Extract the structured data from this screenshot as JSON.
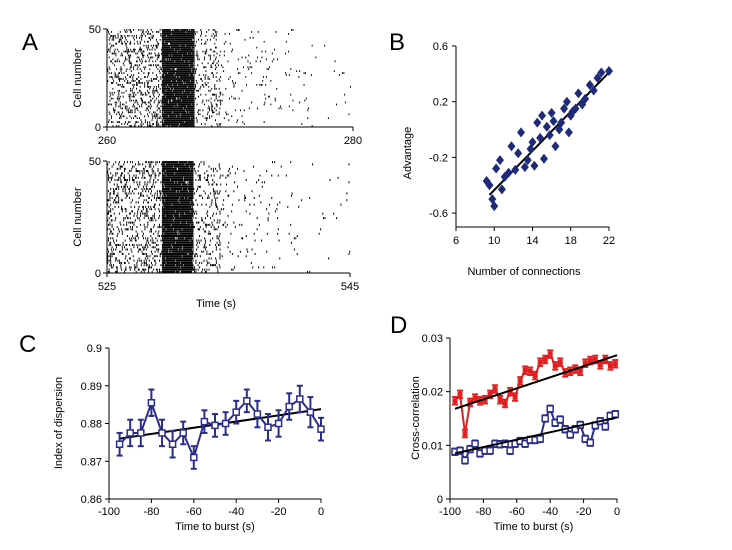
{
  "panel_labels": [
    "A",
    "B",
    "C",
    "D"
  ],
  "chart_data": [
    {
      "panel": "A",
      "type": "scatter",
      "subtype": "raster",
      "rasters": [
        {
          "xlim": [
            260,
            280
          ],
          "ylim": [
            0,
            50
          ],
          "x_ticks": [
            260,
            280
          ],
          "y_ticks": [
            0,
            50
          ],
          "ylabel": "Cell number",
          "burst_center": 265.8
        },
        {
          "xlim": [
            525,
            545
          ],
          "ylim": [
            0,
            50
          ],
          "x_ticks": [
            525,
            545
          ],
          "y_ticks": [
            0,
            50
          ],
          "ylabel": "Cell number",
          "burst_center": 530.8
        }
      ],
      "xlabel": "Time (s)"
    },
    {
      "panel": "B",
      "type": "scatter",
      "xlabel": "Number of connections",
      "ylabel": "Advantage",
      "xlim": [
        6,
        22
      ],
      "ylim": [
        -0.7,
        0.6
      ],
      "x_ticks": [
        6,
        10,
        14,
        18,
        22
      ],
      "y_ticks": [
        -0.6,
        -0.2,
        0.2,
        0.6
      ],
      "points": [
        [
          9.2,
          -0.37
        ],
        [
          9.5,
          -0.4
        ],
        [
          9.8,
          -0.5
        ],
        [
          10.0,
          -0.55
        ],
        [
          10.2,
          -0.28
        ],
        [
          10.6,
          -0.22
        ],
        [
          10.8,
          -0.43
        ],
        [
          11.1,
          -0.34
        ],
        [
          11.5,
          -0.31
        ],
        [
          11.8,
          -0.12
        ],
        [
          12.2,
          -0.29
        ],
        [
          12.5,
          -0.17
        ],
        [
          12.8,
          -0.02
        ],
        [
          13.2,
          -0.27
        ],
        [
          13.5,
          -0.22
        ],
        [
          13.8,
          -0.14
        ],
        [
          14.0,
          -0.09
        ],
        [
          14.2,
          -0.26
        ],
        [
          14.5,
          0.05
        ],
        [
          14.8,
          -0.06
        ],
        [
          15.0,
          0.1
        ],
        [
          15.2,
          -0.21
        ],
        [
          15.5,
          0.02
        ],
        [
          15.8,
          -0.04
        ],
        [
          16.0,
          0.12
        ],
        [
          16.2,
          0.06
        ],
        [
          16.4,
          -0.12
        ],
        [
          16.8,
          0.0
        ],
        [
          17.0,
          0.05
        ],
        [
          17.3,
          0.15
        ],
        [
          17.6,
          0.2
        ],
        [
          17.8,
          -0.02
        ],
        [
          18.0,
          0.1
        ],
        [
          18.2,
          0.13
        ],
        [
          18.5,
          0.15
        ],
        [
          18.8,
          0.26
        ],
        [
          19.2,
          0.18
        ],
        [
          19.5,
          0.22
        ],
        [
          20.0,
          0.32
        ],
        [
          20.4,
          0.28
        ],
        [
          20.8,
          0.37
        ],
        [
          21.2,
          0.41
        ],
        [
          22.0,
          0.42
        ]
      ],
      "fit": {
        "x": [
          9.5,
          22
        ],
        "y": [
          -0.47,
          0.41
        ]
      },
      "marker_color": "#1f2b7a"
    },
    {
      "panel": "C",
      "type": "line",
      "xlabel": "Time to burst (s)",
      "ylabel": "Index of dispersion",
      "xlim": [
        -100,
        0
      ],
      "ylim": [
        0.86,
        0.9
      ],
      "x_ticks": [
        -100,
        -80,
        -60,
        -40,
        -20,
        0
      ],
      "y_ticks": [
        0.86,
        0.87,
        0.88,
        0.89,
        0.9
      ],
      "series": [
        {
          "color": "#2b2d8c",
          "x": [
            -95,
            -90,
            -85,
            -80,
            -75,
            -70,
            -65,
            -60,
            -55,
            -50,
            -45,
            -40,
            -35,
            -30,
            -25,
            -20,
            -15,
            -10,
            -5,
            0
          ],
          "values": [
            0.8745,
            0.8775,
            0.8775,
            0.8855,
            0.8775,
            0.8745,
            0.8775,
            0.871,
            0.8805,
            0.8795,
            0.88,
            0.883,
            0.886,
            0.8825,
            0.879,
            0.88,
            0.8845,
            0.8865,
            0.883,
            0.8785
          ],
          "errors": [
            0.003,
            0.0035,
            0.0035,
            0.0035,
            0.0035,
            0.0035,
            0.003,
            0.003,
            0.003,
            0.003,
            0.003,
            0.003,
            0.003,
            0.0035,
            0.0035,
            0.0035,
            0.0035,
            0.0035,
            0.004,
            0.003
          ]
        }
      ],
      "fit": {
        "x": [
          -95,
          0
        ],
        "y": [
          0.876,
          0.8838
        ]
      }
    },
    {
      "panel": "D",
      "type": "line",
      "xlabel": "Time to burst (s)",
      "ylabel": "Cross-correlation",
      "xlim": [
        -100,
        0
      ],
      "ylim": [
        0,
        0.03
      ],
      "x_ticks": [
        -100,
        -80,
        -60,
        -40,
        -20,
        0
      ],
      "y_ticks": [
        0,
        0.01,
        0.02,
        0.03
      ],
      "series": [
        {
          "color": "#e02020",
          "x": [
            -97,
            -94,
            -91,
            -88,
            -85,
            -82,
            -79,
            -76,
            -73,
            -70,
            -67,
            -64,
            -61,
            -58,
            -55,
            -52,
            -49,
            -46,
            -43,
            -40,
            -37,
            -34,
            -31,
            -28,
            -25,
            -22,
            -19,
            -16,
            -13,
            -10,
            -7,
            -4,
            -1
          ],
          "values": [
            0.0183,
            0.0195,
            0.0122,
            0.018,
            0.0188,
            0.0183,
            0.0185,
            0.0195,
            0.0205,
            0.0185,
            0.0178,
            0.02,
            0.019,
            0.022,
            0.024,
            0.0238,
            0.023,
            0.0255,
            0.026,
            0.027,
            0.0248,
            0.0255,
            0.0235,
            0.0238,
            0.0242,
            0.0238,
            0.0253,
            0.0258,
            0.026,
            0.025,
            0.026,
            0.0248,
            0.0252
          ],
          "errors": [
            0.0007,
            0.0007,
            0.0007,
            0.0007,
            0.0007,
            0.0007,
            0.0007,
            0.0007,
            0.0007,
            0.0007,
            0.0007,
            0.0007,
            0.0007,
            0.0007,
            0.0007,
            0.0007,
            0.0007,
            0.0007,
            0.0007,
            0.0007,
            0.0007,
            0.0007,
            0.0007,
            0.0007,
            0.0007,
            0.0007,
            0.0007,
            0.0007,
            0.0007,
            0.0007,
            0.0007,
            0.0007,
            0.0007
          ]
        },
        {
          "color": "#2b2d8c",
          "x": [
            -97,
            -94,
            -91,
            -88,
            -85,
            -82,
            -79,
            -76,
            -73,
            -70,
            -67,
            -64,
            -61,
            -58,
            -55,
            -52,
            -49,
            -46,
            -43,
            -40,
            -37,
            -34,
            -31,
            -28,
            -25,
            -22,
            -19,
            -16,
            -13,
            -10,
            -7,
            -4,
            -1
          ],
          "values": [
            0.0088,
            0.009,
            0.0072,
            0.0093,
            0.0103,
            0.0085,
            0.009,
            0.009,
            0.0103,
            0.0102,
            0.0103,
            0.009,
            0.0103,
            0.0108,
            0.0103,
            0.011,
            0.011,
            0.0112,
            0.015,
            0.0168,
            0.0142,
            0.0148,
            0.013,
            0.012,
            0.013,
            0.0138,
            0.0112,
            0.0105,
            0.0137,
            0.0145,
            0.0135,
            0.0155,
            0.0158
          ],
          "errors": [
            0.0006,
            0.0006,
            0.0006,
            0.0006,
            0.0006,
            0.0006,
            0.0006,
            0.0006,
            0.0006,
            0.0006,
            0.0006,
            0.0006,
            0.0006,
            0.0006,
            0.0006,
            0.0006,
            0.0006,
            0.0006,
            0.0006,
            0.0006,
            0.0006,
            0.0006,
            0.0006,
            0.0006,
            0.0006,
            0.0006,
            0.0006,
            0.0006,
            0.0006,
            0.0006,
            0.0006,
            0.0006,
            0.0006
          ]
        }
      ],
      "fits": [
        {
          "color": "#000000",
          "x": [
            -97,
            0
          ],
          "y": [
            0.0168,
            0.0268
          ]
        },
        {
          "color": "#000000",
          "x": [
            -97,
            0
          ],
          "y": [
            0.0085,
            0.0152
          ]
        }
      ]
    }
  ]
}
